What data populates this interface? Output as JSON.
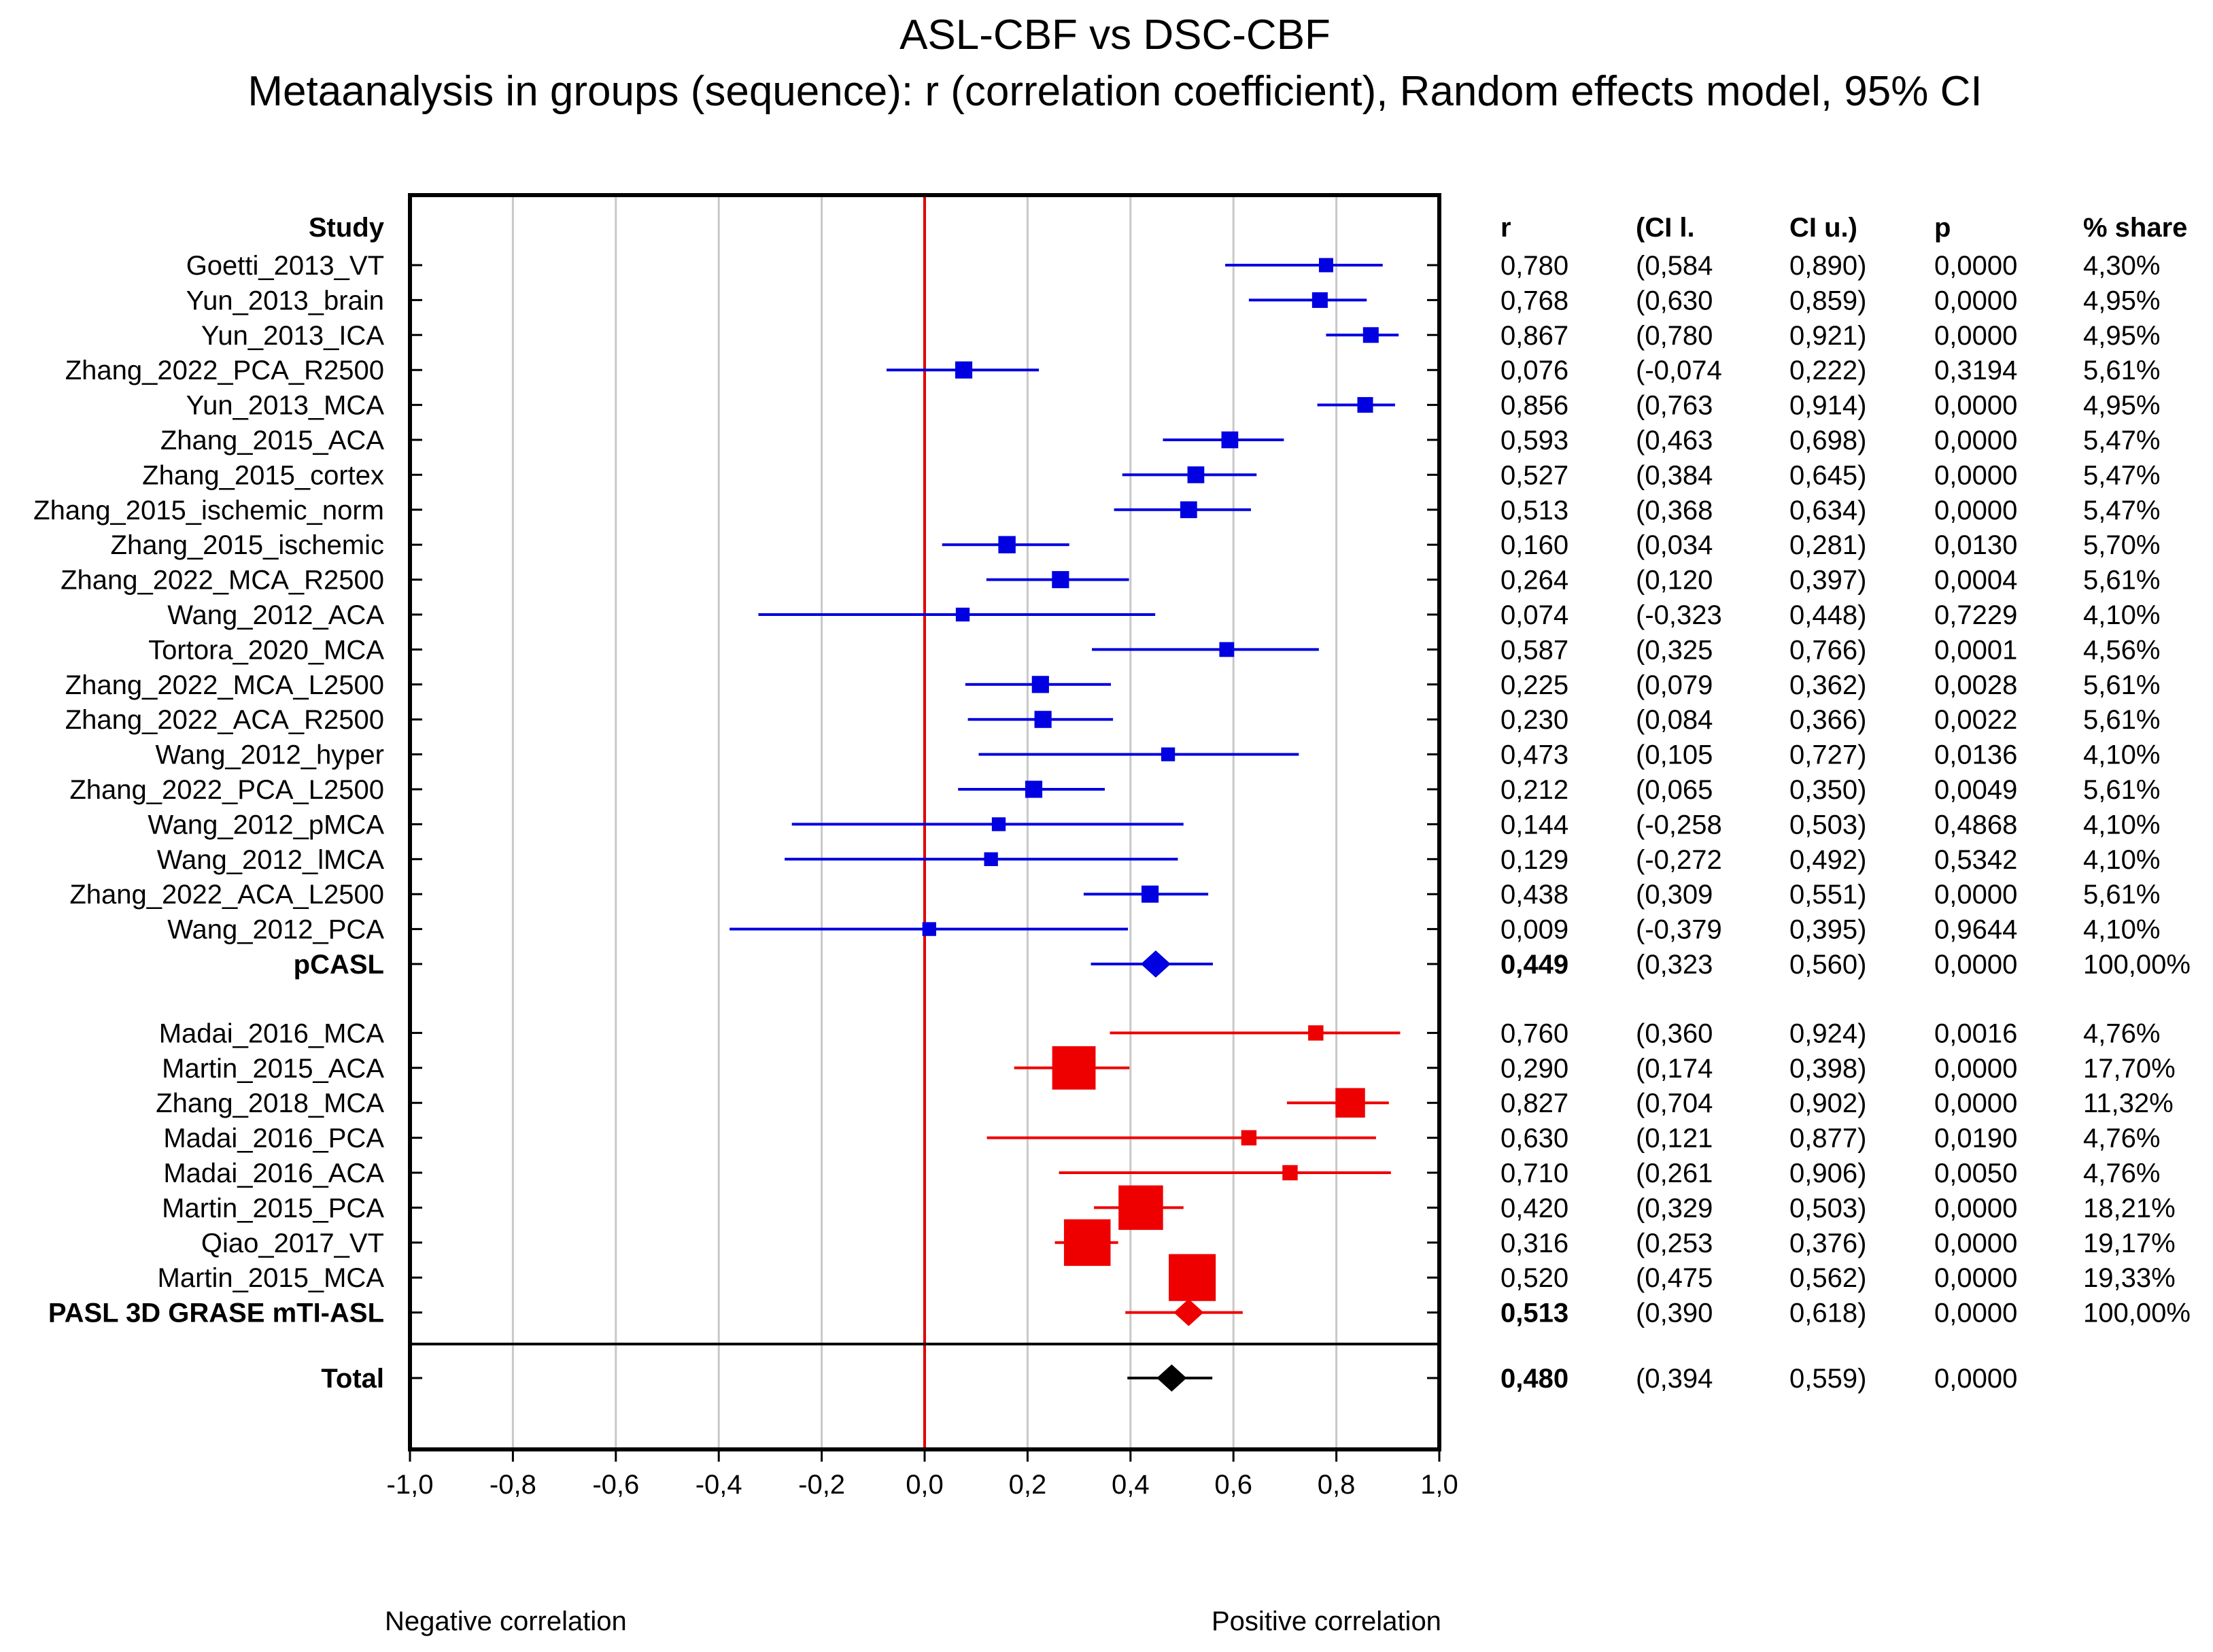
{
  "chart_data": {
    "type": "forest",
    "title": "ASL-CBF vs DSC-CBF",
    "subtitle": "Metaanalysis in groups (sequence): r (correlation coefficient), Random effects model, 95% CI",
    "xlim": [
      -1.0,
      1.0
    ],
    "x_ticks": [
      "-1,0",
      "-0,8",
      "-0,6",
      "-0,4",
      "-0,2",
      "0,0",
      "0,2",
      "0,4",
      "0,6",
      "0,8",
      "1,0"
    ],
    "x_tick_values": [
      -1.0,
      -0.8,
      -0.6,
      -0.4,
      -0.2,
      0.0,
      0.2,
      0.4,
      0.6,
      0.8,
      1.0
    ],
    "reference_line": 0.0,
    "axis_labels": {
      "negative": "Negative correlation",
      "positive": "Positive correlation"
    },
    "column_headers": {
      "study": "Study",
      "r": "r",
      "ci_low": "(CI l.",
      "ci_up": "CI u.)",
      "p": "p",
      "share": "% share"
    },
    "groups": [
      {
        "name": "pCASL",
        "color": "#0000e0",
        "studies": [
          {
            "study": "Goetti_2013_VT",
            "r": 0.78,
            "lo": 0.584,
            "hi": 0.89,
            "r_text": "0,780",
            "lo_text": "(0,584",
            "hi_text": "0,890)",
            "p_text": "0,0000",
            "share_text": "4,30%",
            "weight": 4.3
          },
          {
            "study": "Yun_2013_brain",
            "r": 0.768,
            "lo": 0.63,
            "hi": 0.859,
            "r_text": "0,768",
            "lo_text": "(0,630",
            "hi_text": "0,859)",
            "p_text": "0,0000",
            "share_text": "4,95%",
            "weight": 4.95
          },
          {
            "study": "Yun_2013_ICA",
            "r": 0.867,
            "lo": 0.78,
            "hi": 0.921,
            "r_text": "0,867",
            "lo_text": "(0,780",
            "hi_text": "0,921)",
            "p_text": "0,0000",
            "share_text": "4,95%",
            "weight": 4.95
          },
          {
            "study": "Zhang_2022_PCA_R2500",
            "r": 0.076,
            "lo": -0.074,
            "hi": 0.222,
            "r_text": "0,076",
            "lo_text": "(-0,074",
            "hi_text": "0,222)",
            "p_text": "0,3194",
            "share_text": "5,61%",
            "weight": 5.61
          },
          {
            "study": "Yun_2013_MCA",
            "r": 0.856,
            "lo": 0.763,
            "hi": 0.914,
            "r_text": "0,856",
            "lo_text": "(0,763",
            "hi_text": "0,914)",
            "p_text": "0,0000",
            "share_text": "4,95%",
            "weight": 4.95
          },
          {
            "study": "Zhang_2015_ACA",
            "r": 0.593,
            "lo": 0.463,
            "hi": 0.698,
            "r_text": "0,593",
            "lo_text": "(0,463",
            "hi_text": "0,698)",
            "p_text": "0,0000",
            "share_text": "5,47%",
            "weight": 5.47
          },
          {
            "study": "Zhang_2015_cortex",
            "r": 0.527,
            "lo": 0.384,
            "hi": 0.645,
            "r_text": "0,527",
            "lo_text": "(0,384",
            "hi_text": "0,645)",
            "p_text": "0,0000",
            "share_text": "5,47%",
            "weight": 5.47
          },
          {
            "study": "Zhang_2015_ischemic_norm",
            "r": 0.513,
            "lo": 0.368,
            "hi": 0.634,
            "r_text": "0,513",
            "lo_text": "(0,368",
            "hi_text": "0,634)",
            "p_text": "0,0000",
            "share_text": "5,47%",
            "weight": 5.47
          },
          {
            "study": "Zhang_2015_ischemic",
            "r": 0.16,
            "lo": 0.034,
            "hi": 0.281,
            "r_text": "0,160",
            "lo_text": "(0,034",
            "hi_text": "0,281)",
            "p_text": "0,0130",
            "share_text": "5,70%",
            "weight": 5.7
          },
          {
            "study": "Zhang_2022_MCA_R2500",
            "r": 0.264,
            "lo": 0.12,
            "hi": 0.397,
            "r_text": "0,264",
            "lo_text": "(0,120",
            "hi_text": "0,397)",
            "p_text": "0,0004",
            "share_text": "5,61%",
            "weight": 5.61
          },
          {
            "study": "Wang_2012_ACA",
            "r": 0.074,
            "lo": -0.323,
            "hi": 0.448,
            "r_text": "0,074",
            "lo_text": "(-0,323",
            "hi_text": "0,448)",
            "p_text": "0,7229",
            "share_text": "4,10%",
            "weight": 4.1
          },
          {
            "study": "Tortora_2020_MCA",
            "r": 0.587,
            "lo": 0.325,
            "hi": 0.766,
            "r_text": "0,587",
            "lo_text": "(0,325",
            "hi_text": "0,766)",
            "p_text": "0,0001",
            "share_text": "4,56%",
            "weight": 4.56
          },
          {
            "study": "Zhang_2022_MCA_L2500",
            "r": 0.225,
            "lo": 0.079,
            "hi": 0.362,
            "r_text": "0,225",
            "lo_text": "(0,079",
            "hi_text": "0,362)",
            "p_text": "0,0028",
            "share_text": "5,61%",
            "weight": 5.61
          },
          {
            "study": "Zhang_2022_ACA_R2500",
            "r": 0.23,
            "lo": 0.084,
            "hi": 0.366,
            "r_text": "0,230",
            "lo_text": "(0,084",
            "hi_text": "0,366)",
            "p_text": "0,0022",
            "share_text": "5,61%",
            "weight": 5.61
          },
          {
            "study": "Wang_2012_hyper",
            "r": 0.473,
            "lo": 0.105,
            "hi": 0.727,
            "r_text": "0,473",
            "lo_text": "(0,105",
            "hi_text": "0,727)",
            "p_text": "0,0136",
            "share_text": "4,10%",
            "weight": 4.1
          },
          {
            "study": "Zhang_2022_PCA_L2500",
            "r": 0.212,
            "lo": 0.065,
            "hi": 0.35,
            "r_text": "0,212",
            "lo_text": "(0,065",
            "hi_text": "0,350)",
            "p_text": "0,0049",
            "share_text": "5,61%",
            "weight": 5.61
          },
          {
            "study": "Wang_2012_pMCA",
            "r": 0.144,
            "lo": -0.258,
            "hi": 0.503,
            "r_text": "0,144",
            "lo_text": "(-0,258",
            "hi_text": "0,503)",
            "p_text": "0,4868",
            "share_text": "4,10%",
            "weight": 4.1
          },
          {
            "study": "Wang_2012_lMCA",
            "r": 0.129,
            "lo": -0.272,
            "hi": 0.492,
            "r_text": "0,129",
            "lo_text": "(-0,272",
            "hi_text": "0,492)",
            "p_text": "0,5342",
            "share_text": "4,10%",
            "weight": 4.1
          },
          {
            "study": "Zhang_2022_ACA_L2500",
            "r": 0.438,
            "lo": 0.309,
            "hi": 0.551,
            "r_text": "0,438",
            "lo_text": "(0,309",
            "hi_text": "0,551)",
            "p_text": "0,0000",
            "share_text": "5,61%",
            "weight": 5.61
          },
          {
            "study": "Wang_2012_PCA",
            "r": 0.009,
            "lo": -0.379,
            "hi": 0.395,
            "r_text": "0,009",
            "lo_text": "(-0,379",
            "hi_text": "0,395)",
            "p_text": "0,9644",
            "share_text": "4,10%",
            "weight": 4.1
          }
        ],
        "summary": {
          "label": "pCASL",
          "r": 0.449,
          "lo": 0.323,
          "hi": 0.56,
          "r_text": "0,449",
          "lo_text": "(0,323",
          "hi_text": "0,560)",
          "p_text": "0,0000",
          "share_text": "100,00%"
        }
      },
      {
        "name": "PASL 3D GRASE mTI-ASL",
        "color": "#ee0000",
        "studies": [
          {
            "study": "Madai_2016_MCA",
            "r": 0.76,
            "lo": 0.36,
            "hi": 0.924,
            "r_text": "0,760",
            "lo_text": "(0,360",
            "hi_text": "0,924)",
            "p_text": "0,0016",
            "share_text": "4,76%",
            "weight": 4.76
          },
          {
            "study": "Martin_2015_ACA",
            "r": 0.29,
            "lo": 0.174,
            "hi": 0.398,
            "r_text": "0,290",
            "lo_text": "(0,174",
            "hi_text": "0,398)",
            "p_text": "0,0000",
            "share_text": "17,70%",
            "weight": 17.7
          },
          {
            "study": "Zhang_2018_MCA",
            "r": 0.827,
            "lo": 0.704,
            "hi": 0.902,
            "r_text": "0,827",
            "lo_text": "(0,704",
            "hi_text": "0,902)",
            "p_text": "0,0000",
            "share_text": "11,32%",
            "weight": 11.32
          },
          {
            "study": "Madai_2016_PCA",
            "r": 0.63,
            "lo": 0.121,
            "hi": 0.877,
            "r_text": "0,630",
            "lo_text": "(0,121",
            "hi_text": "0,877)",
            "p_text": "0,0190",
            "share_text": "4,76%",
            "weight": 4.76
          },
          {
            "study": "Madai_2016_ACA",
            "r": 0.71,
            "lo": 0.261,
            "hi": 0.906,
            "r_text": "0,710",
            "lo_text": "(0,261",
            "hi_text": "0,906)",
            "p_text": "0,0050",
            "share_text": "4,76%",
            "weight": 4.76
          },
          {
            "study": "Martin_2015_PCA",
            "r": 0.42,
            "lo": 0.329,
            "hi": 0.503,
            "r_text": "0,420",
            "lo_text": "(0,329",
            "hi_text": "0,503)",
            "p_text": "0,0000",
            "share_text": "18,21%",
            "weight": 18.21
          },
          {
            "study": "Qiao_2017_VT",
            "r": 0.316,
            "lo": 0.253,
            "hi": 0.376,
            "r_text": "0,316",
            "lo_text": "(0,253",
            "hi_text": "0,376)",
            "p_text": "0,0000",
            "share_text": "19,17%",
            "weight": 19.17
          },
          {
            "study": "Martin_2015_MCA",
            "r": 0.52,
            "lo": 0.475,
            "hi": 0.562,
            "r_text": "0,520",
            "lo_text": "(0,475",
            "hi_text": "0,562)",
            "p_text": "0,0000",
            "share_text": "19,33%",
            "weight": 19.33
          }
        ],
        "summary": {
          "label": "PASL 3D GRASE mTI-ASL",
          "r": 0.513,
          "lo": 0.39,
          "hi": 0.618,
          "r_text": "0,513",
          "lo_text": "(0,390",
          "hi_text": "0,618)",
          "p_text": "0,0000",
          "share_text": "100,00%"
        }
      }
    ],
    "total": {
      "label": "Total",
      "r": 0.48,
      "lo": 0.394,
      "hi": 0.559,
      "r_text": "0,480",
      "lo_text": "(0,394",
      "hi_text": "0,559)",
      "p_text": "0,0000",
      "share_text": "",
      "color": "#000000"
    }
  }
}
